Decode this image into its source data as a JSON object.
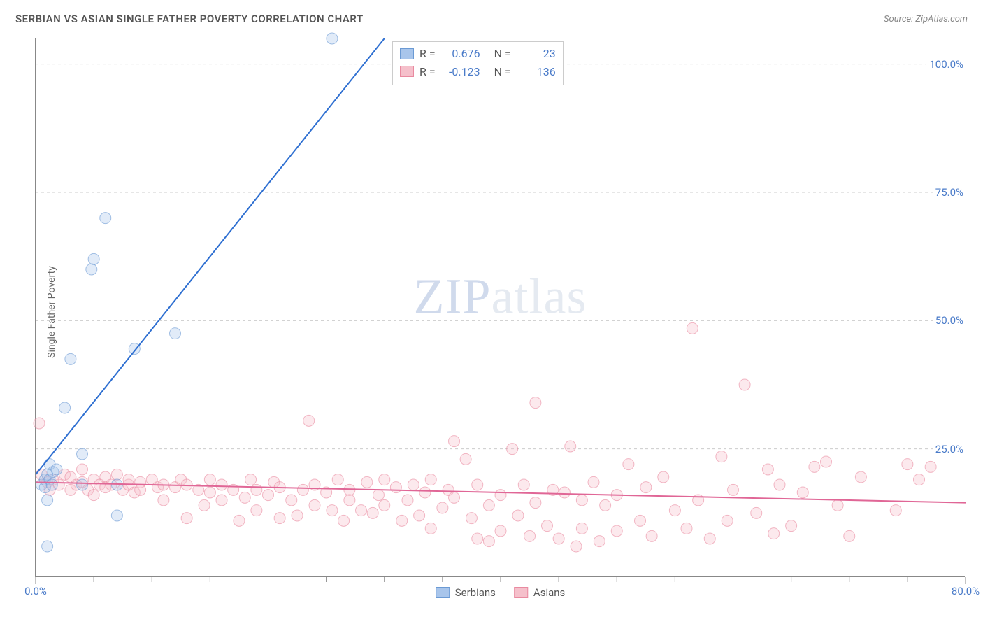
{
  "title": "SERBIAN VS ASIAN SINGLE FATHER POVERTY CORRELATION CHART",
  "source": "Source: ZipAtlas.com",
  "y_axis_label": "Single Father Poverty",
  "watermark_zip": "ZIP",
  "watermark_atlas": "atlas",
  "chart": {
    "type": "scatter",
    "xlim": [
      0,
      80
    ],
    "ylim": [
      0,
      105
    ],
    "x_ticks_major": [
      0,
      80
    ],
    "x_ticks_minor": [
      5,
      10,
      15,
      20,
      25,
      30,
      35,
      40,
      45,
      50,
      55,
      60,
      65,
      70,
      75
    ],
    "x_tick_labels": {
      "0": "0.0%",
      "80": "80.0%"
    },
    "y_ticks": [
      25,
      50,
      75,
      100
    ],
    "y_tick_labels": {
      "25": "25.0%",
      "50": "50.0%",
      "75": "75.0%",
      "100": "100.0%"
    },
    "grid_color": "#cccccc",
    "background_color": "#ffffff",
    "marker_radius": 8,
    "marker_opacity": 0.35,
    "marker_stroke_opacity": 0.6,
    "series": [
      {
        "name": "Serbians",
        "color_fill": "#a8c5eb",
        "color_stroke": "#6b9ad4",
        "stat_R": "0.676",
        "stat_N": "23",
        "trend": {
          "x1": 0,
          "y1": 20,
          "x2": 30,
          "y2": 105,
          "color": "#2e6fd1",
          "width": 2
        },
        "points": [
          [
            0.5,
            18
          ],
          [
            0.8,
            17.5
          ],
          [
            0.8,
            19
          ],
          [
            1,
            15
          ],
          [
            1,
            20
          ],
          [
            1.2,
            22
          ],
          [
            1.2,
            19
          ],
          [
            1.4,
            18
          ],
          [
            1.5,
            20.5
          ],
          [
            1.8,
            21
          ],
          [
            2.5,
            33
          ],
          [
            3,
            42.5
          ],
          [
            4,
            24
          ],
          [
            4,
            18
          ],
          [
            4.8,
            60
          ],
          [
            5,
            62
          ],
          [
            6,
            70
          ],
          [
            8.5,
            44.5
          ],
          [
            12,
            47.5
          ],
          [
            7,
            18
          ],
          [
            1,
            6
          ],
          [
            7,
            12
          ],
          [
            25.5,
            105
          ]
        ]
      },
      {
        "name": "Asians",
        "color_fill": "#f5c0cb",
        "color_stroke": "#e98aa0",
        "stat_R": "-0.123",
        "stat_N": "136",
        "trend": {
          "x1": 0,
          "y1": 18.5,
          "x2": 80,
          "y2": 14.5,
          "color": "#e06696",
          "width": 2
        },
        "points": [
          [
            0.3,
            30
          ],
          [
            0.5,
            20
          ],
          [
            1,
            18.5
          ],
          [
            1.2,
            17
          ],
          [
            1.5,
            19
          ],
          [
            2,
            18
          ],
          [
            2.5,
            20
          ],
          [
            3,
            19.5
          ],
          [
            3,
            17
          ],
          [
            3.5,
            18
          ],
          [
            4,
            21
          ],
          [
            4,
            18.5
          ],
          [
            4.5,
            17
          ],
          [
            5,
            19
          ],
          [
            5,
            16
          ],
          [
            5.5,
            18
          ],
          [
            6,
            19.5
          ],
          [
            6,
            17.5
          ],
          [
            6.5,
            18
          ],
          [
            7,
            20
          ],
          [
            7.5,
            17
          ],
          [
            8,
            18
          ],
          [
            8,
            19
          ],
          [
            8.5,
            16.5
          ],
          [
            9,
            18.5
          ],
          [
            9,
            17
          ],
          [
            10,
            19
          ],
          [
            10.5,
            17.5
          ],
          [
            11,
            18
          ],
          [
            11,
            15
          ],
          [
            12,
            17.5
          ],
          [
            12.5,
            19
          ],
          [
            13,
            11.5
          ],
          [
            13,
            18
          ],
          [
            14,
            17
          ],
          [
            14.5,
            14
          ],
          [
            15,
            16.5
          ],
          [
            15,
            19
          ],
          [
            16,
            15
          ],
          [
            16,
            18
          ],
          [
            17,
            17
          ],
          [
            17.5,
            11
          ],
          [
            18,
            15.5
          ],
          [
            18.5,
            19
          ],
          [
            19,
            17
          ],
          [
            19,
            13
          ],
          [
            20,
            16
          ],
          [
            20.5,
            18.5
          ],
          [
            21,
            11.5
          ],
          [
            21,
            17.5
          ],
          [
            22,
            15
          ],
          [
            22.5,
            12
          ],
          [
            23,
            17
          ],
          [
            23.5,
            30.5
          ],
          [
            24,
            14
          ],
          [
            24,
            18
          ],
          [
            25,
            16.5
          ],
          [
            25.5,
            13
          ],
          [
            26,
            19
          ],
          [
            26.5,
            11
          ],
          [
            27,
            17
          ],
          [
            27,
            15
          ],
          [
            28,
            13
          ],
          [
            28.5,
            18.5
          ],
          [
            29,
            12.5
          ],
          [
            29.5,
            16
          ],
          [
            30,
            19
          ],
          [
            30,
            14
          ],
          [
            31,
            17.5
          ],
          [
            31.5,
            11
          ],
          [
            32,
            15
          ],
          [
            32.5,
            18
          ],
          [
            33,
            12
          ],
          [
            33.5,
            16.5
          ],
          [
            34,
            19
          ],
          [
            34,
            9.5
          ],
          [
            35,
            13.5
          ],
          [
            35.5,
            17
          ],
          [
            36,
            26.5
          ],
          [
            36,
            15.5
          ],
          [
            37,
            23
          ],
          [
            37.5,
            11.5
          ],
          [
            38,
            18
          ],
          [
            38,
            7.5
          ],
          [
            39,
            14
          ],
          [
            39,
            7
          ],
          [
            40,
            16
          ],
          [
            40,
            9
          ],
          [
            41,
            25
          ],
          [
            41.5,
            12
          ],
          [
            42,
            18
          ],
          [
            42.5,
            8
          ],
          [
            43,
            34
          ],
          [
            43,
            14.5
          ],
          [
            44,
            10
          ],
          [
            44.5,
            17
          ],
          [
            45,
            7.5
          ],
          [
            45.5,
            16.5
          ],
          [
            46,
            25.5
          ],
          [
            46.5,
            6
          ],
          [
            47,
            15
          ],
          [
            47,
            9.5
          ],
          [
            48,
            18.5
          ],
          [
            48.5,
            7
          ],
          [
            49,
            14
          ],
          [
            50,
            16
          ],
          [
            50,
            9
          ],
          [
            51,
            22
          ],
          [
            52,
            11
          ],
          [
            52.5,
            17.5
          ],
          [
            53,
            8
          ],
          [
            54,
            19.5
          ],
          [
            55,
            13
          ],
          [
            56,
            9.5
          ],
          [
            56.5,
            48.5
          ],
          [
            57,
            15
          ],
          [
            58,
            7.5
          ],
          [
            59,
            23.5
          ],
          [
            59.5,
            11
          ],
          [
            60,
            17
          ],
          [
            61,
            37.5
          ],
          [
            62,
            12.5
          ],
          [
            63,
            21
          ],
          [
            63.5,
            8.5
          ],
          [
            64,
            18
          ],
          [
            65,
            10
          ],
          [
            66,
            16.5
          ],
          [
            67,
            21.5
          ],
          [
            68,
            22.5
          ],
          [
            69,
            14
          ],
          [
            70,
            8
          ],
          [
            71,
            19.5
          ],
          [
            74,
            13
          ],
          [
            75,
            22
          ],
          [
            76,
            19
          ],
          [
            77,
            21.5
          ]
        ]
      }
    ]
  },
  "stat_legend_labels": {
    "R": "R =",
    "N": "N ="
  },
  "bottom_legend_labels": [
    "Serbians",
    "Asians"
  ]
}
